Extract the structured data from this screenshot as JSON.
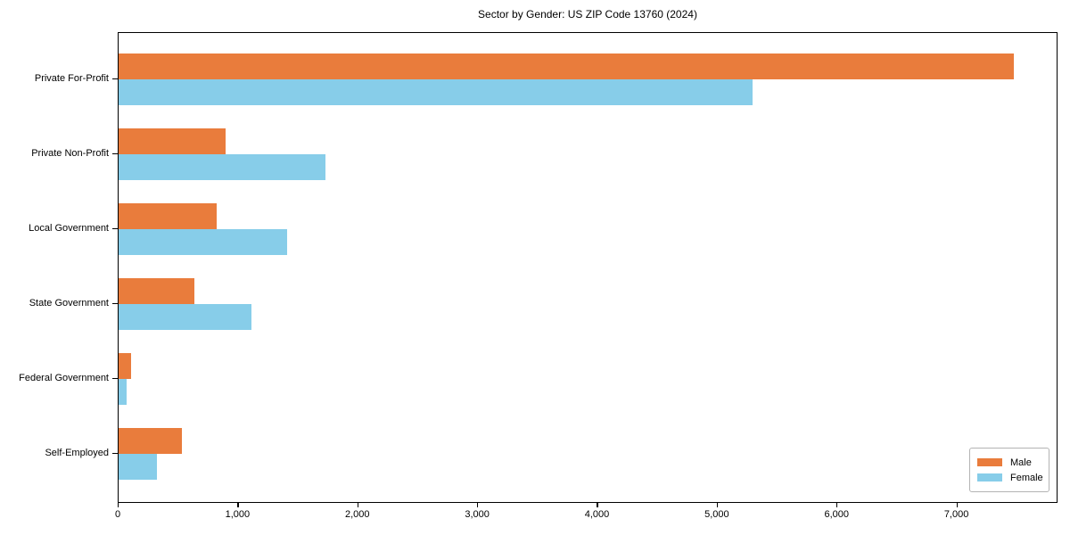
{
  "chart_data": {
    "type": "bar",
    "orientation": "horizontal",
    "title": "Sector by Gender: US ZIP Code 13760 (2024)",
    "categories": [
      "Private For-Profit",
      "Private Non-Profit",
      "Local Government",
      "State Government",
      "Federal Government",
      "Self-Employed"
    ],
    "series": [
      {
        "name": "Male",
        "color": "#E97C3C",
        "values": [
          7470,
          890,
          820,
          630,
          105,
          530
        ]
      },
      {
        "name": "Female",
        "color": "#87CDE9",
        "values": [
          5290,
          1730,
          1410,
          1110,
          70,
          320
        ]
      }
    ],
    "xlabel": "",
    "ylabel": "",
    "xlim": [
      0,
      7844
    ],
    "xticks": [
      0,
      1000,
      2000,
      3000,
      4000,
      5000,
      6000,
      7000
    ],
    "xtick_labels": [
      "0",
      "1,000",
      "2,000",
      "3,000",
      "4,000",
      "5,000",
      "6,000",
      "7,000"
    ],
    "grid": false,
    "legend": {
      "position": "lower right",
      "entries": [
        "Male",
        "Female"
      ]
    }
  }
}
